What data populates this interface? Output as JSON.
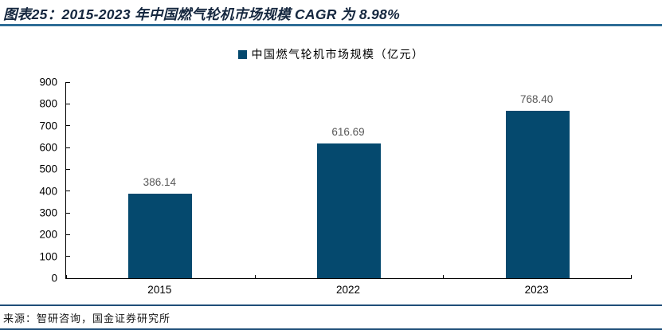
{
  "header": {
    "title": "图表25：2015-2023 年中国燃气轮机市场规模 CAGR 为 8.98%"
  },
  "legend": {
    "label": "中国燃气轮机市场规模（亿元）",
    "marker_color": "#05496E"
  },
  "chart_data": {
    "type": "bar",
    "title": "图表25：2015-2023 年中国燃气轮机市场规模 CAGR 为 8.98%",
    "series_name": "中国燃气轮机市场规模（亿元）",
    "categories": [
      "2015",
      "2022",
      "2023"
    ],
    "values": [
      386.14,
      616.69,
      768.4
    ],
    "value_labels": [
      "386.14",
      "616.69",
      "768.40"
    ],
    "xlabel": "",
    "ylabel": "",
    "ylim": [
      0,
      900
    ],
    "ytick_step": 100,
    "grid": false,
    "legend_position": "top-center",
    "bar_color": "#05496E"
  },
  "footer": {
    "source": "来源：智研咨询，国金证券研究所"
  },
  "colors": {
    "bar": "#05496E",
    "title_rule": "#2E6D96",
    "footer_rule": "#1F4E79",
    "value_label": "#595959",
    "axis": "#000000"
  }
}
